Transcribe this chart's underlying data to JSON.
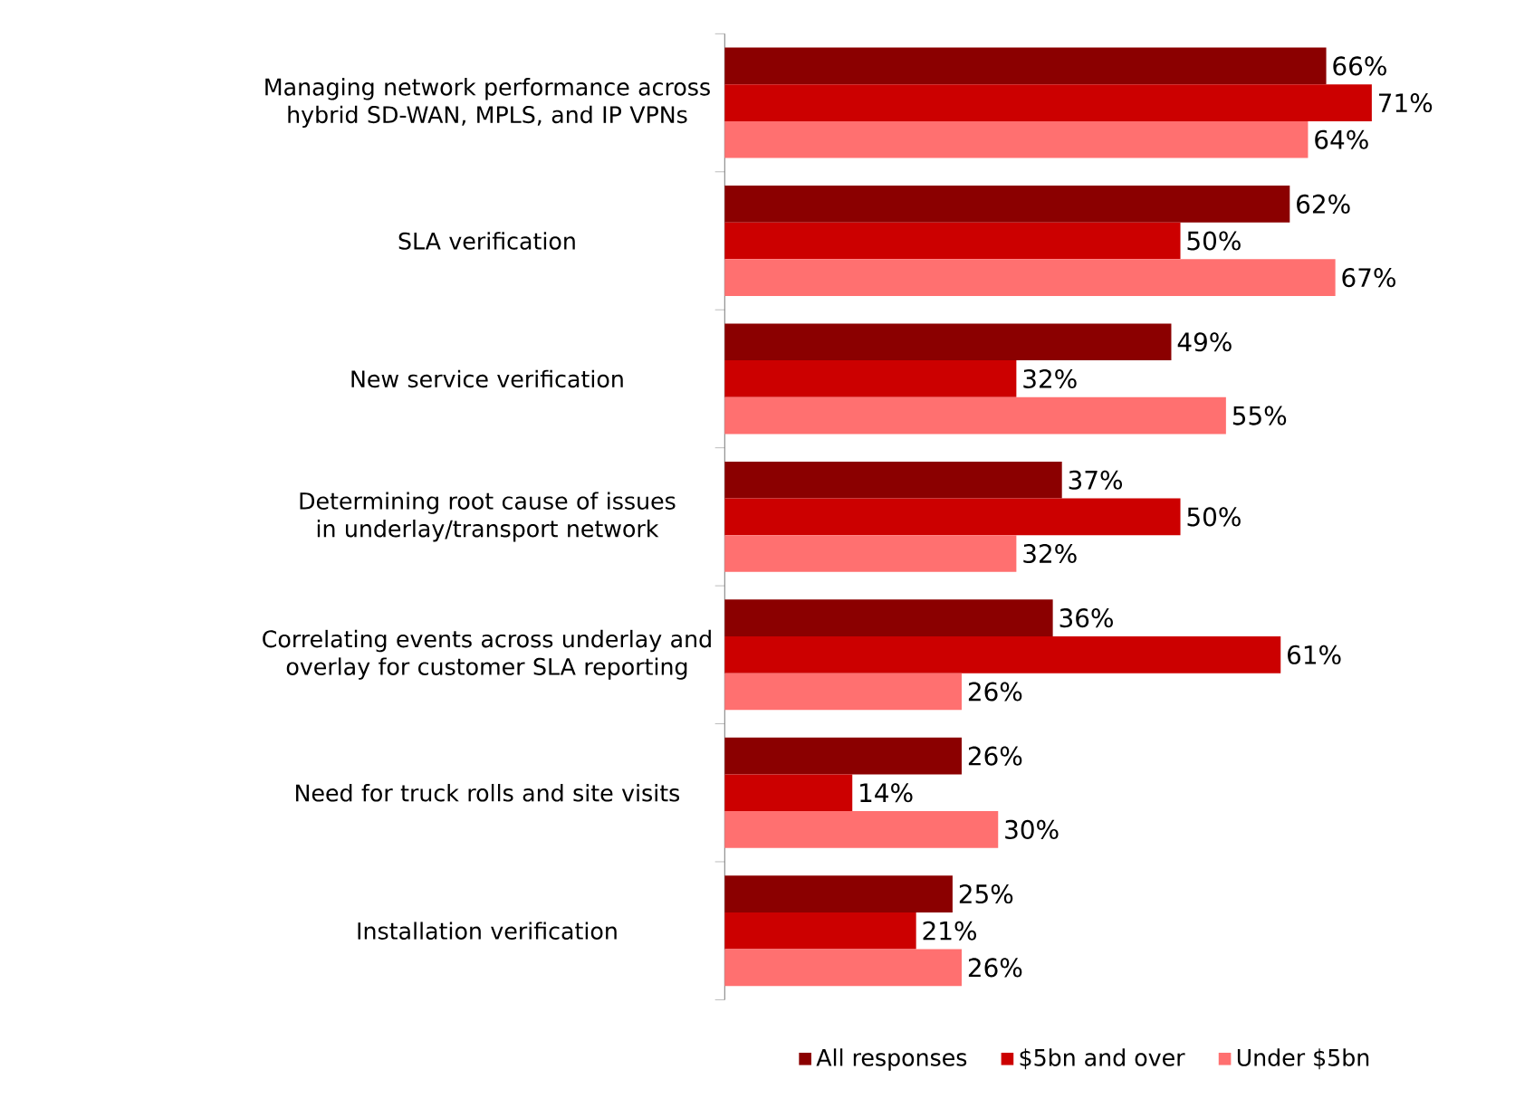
{
  "chart_data": {
    "type": "bar",
    "orientation": "horizontal",
    "legend": "bottom",
    "categories": [
      "Managing network performance across hybrid SD-WAN, MPLS, and IP VPNs",
      "SLA verification",
      "New service verification",
      "Determining root cause of issues in underlay/transport network",
      "Correlating events across underlay and overlay for customer SLA reporting",
      "Need for truck rolls and site visits",
      "Installation verification"
    ],
    "series": [
      {
        "name": "All responses",
        "color": "#8b0000",
        "values": [
          66,
          62,
          49,
          37,
          36,
          26,
          25
        ],
        "value_labels": [
          "66%",
          "62%",
          "49%",
          "37%",
          "36%",
          "26%",
          "25%"
        ]
      },
      {
        "name": "$5bn and over",
        "color": "#cc0000",
        "values": [
          71,
          50,
          32,
          50,
          61,
          14,
          21
        ],
        "value_labels": [
          "71%",
          "50%",
          "32%",
          "50%",
          "61%",
          "14%",
          "21%"
        ]
      },
      {
        "name": "Under $5bn",
        "color": "#ff7070",
        "values": [
          64,
          67,
          55,
          32,
          26,
          30,
          26
        ],
        "value_labels": [
          "64%",
          "67%",
          "55%",
          "32%",
          "26%",
          "30%",
          "26%"
        ]
      }
    ]
  }
}
